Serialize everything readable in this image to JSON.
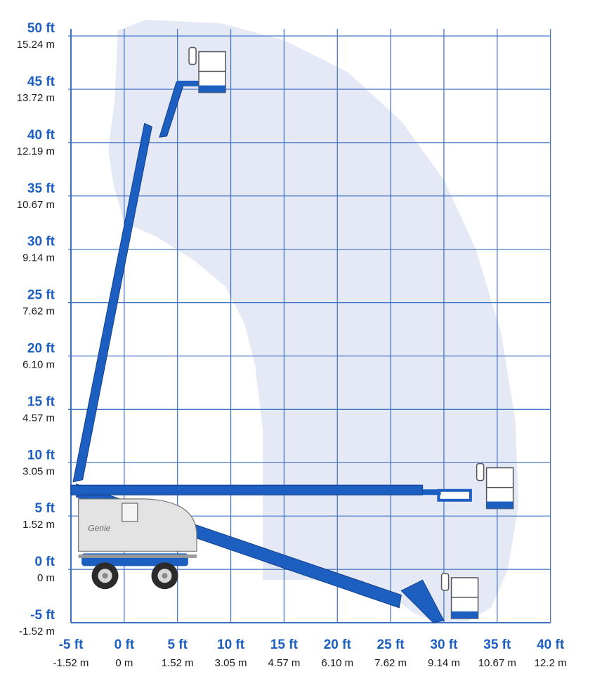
{
  "title": "",
  "colors": {
    "grid": "#3d6fc4",
    "envelope": "#e5e9f6",
    "boom": "#1d5fc0",
    "boom_dark": "#123f8a",
    "label_ft": "#1d5fc0",
    "label_m": "#1a1a1a"
  },
  "machine": {
    "brand_text": "Genie",
    "icons": [
      "aerial-boom-lift-icon",
      "work-platform-basket-icon",
      "wheel-icon"
    ]
  },
  "chart_data": {
    "type": "working-range-envelope",
    "x_axis": {
      "range_ft": [
        -5,
        40
      ],
      "ticks": [
        {
          "value": -5,
          "ft": "-5 ft",
          "m": "-1.52 m"
        },
        {
          "value": 0,
          "ft": "0 ft",
          "m": "0 m"
        },
        {
          "value": 5,
          "ft": "5 ft",
          "m": "1.52 m"
        },
        {
          "value": 10,
          "ft": "10 ft",
          "m": "3.05 m"
        },
        {
          "value": 15,
          "ft": "15 ft",
          "m": "4.57 m"
        },
        {
          "value": 20,
          "ft": "20 ft",
          "m": "6.10 m"
        },
        {
          "value": 25,
          "ft": "25 ft",
          "m": "7.62 m"
        },
        {
          "value": 30,
          "ft": "30 ft",
          "m": "9.14 m"
        },
        {
          "value": 35,
          "ft": "35 ft",
          "m": "10.67 m"
        },
        {
          "value": 40,
          "ft": "40 ft",
          "m": "12.2 m"
        }
      ]
    },
    "y_axis": {
      "range_ft": [
        -5,
        50
      ],
      "ticks": [
        {
          "value": 50,
          "ft": "50 ft",
          "m": "15.24 m"
        },
        {
          "value": 45,
          "ft": "45 ft",
          "m": "13.72 m"
        },
        {
          "value": 40,
          "ft": "40 ft",
          "m": "12.19 m"
        },
        {
          "value": 35,
          "ft": "35 ft",
          "m": "10.67 m"
        },
        {
          "value": 30,
          "ft": "30 ft",
          "m": "9.14 m"
        },
        {
          "value": 25,
          "ft": "25 ft",
          "m": "7.62 m"
        },
        {
          "value": 20,
          "ft": "20 ft",
          "m": "6.10 m"
        },
        {
          "value": 15,
          "ft": "15 ft",
          "m": "4.57 m"
        },
        {
          "value": 10,
          "ft": "10 ft",
          "m": "3.05 m"
        },
        {
          "value": 5,
          "ft": "5 ft",
          "m": "1.52 m"
        },
        {
          "value": 0,
          "ft": "0 ft",
          "m": "0 m"
        },
        {
          "value": -5,
          "ft": "-5 ft",
          "m": "-1.52 m"
        }
      ]
    },
    "grid": true,
    "envelope_outline_ft": [
      [
        -1.5,
        39.3
      ],
      [
        -0.9,
        44
      ],
      [
        -0.6,
        50.5
      ],
      [
        2,
        51.5
      ],
      [
        9,
        51.2
      ],
      [
        15,
        49.6
      ],
      [
        21,
        46.6
      ],
      [
        26,
        42
      ],
      [
        30,
        36.5
      ],
      [
        33,
        30
      ],
      [
        35.4,
        22
      ],
      [
        36.7,
        14
      ],
      [
        37,
        6
      ],
      [
        36,
        0
      ],
      [
        34.4,
        -3.6
      ],
      [
        32,
        -5
      ],
      [
        29.3,
        -5
      ],
      [
        27,
        -4
      ],
      [
        24.5,
        -2
      ],
      [
        22,
        -1
      ],
      [
        17.5,
        -1
      ],
      [
        13,
        -1
      ],
      [
        13,
        13
      ],
      [
        12.3,
        19
      ],
      [
        11.3,
        23
      ],
      [
        9.5,
        26.5
      ],
      [
        6.5,
        29
      ],
      [
        3,
        31.2
      ],
      [
        0,
        32.5
      ],
      [
        -1,
        36
      ],
      [
        -1.5,
        39.3
      ]
    ],
    "positions": [
      {
        "name": "max-height",
        "platform_ft": [
          7,
          46.5
        ]
      },
      {
        "name": "max-horizontal-reach",
        "platform_ft": [
          35,
          7
        ]
      },
      {
        "name": "below-grade",
        "platform_ft": [
          32,
          -4
        ]
      }
    ]
  }
}
